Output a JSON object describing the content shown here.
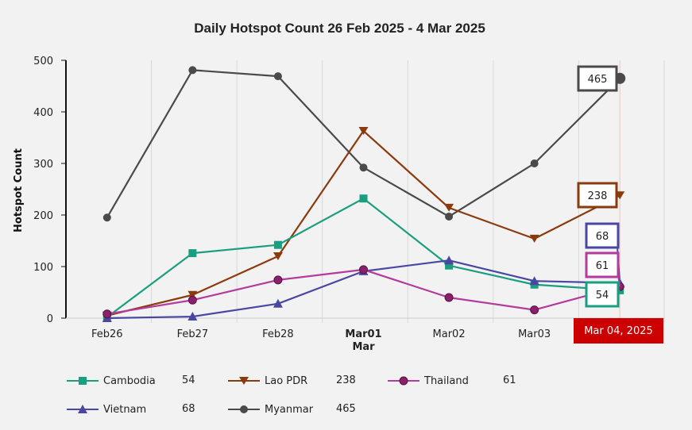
{
  "chart_data": {
    "type": "line",
    "title": "Daily Hotspot Count 26 Feb 2025 - 4 Mar 2025",
    "xlabel": "",
    "ylabel": "Hotspot Count",
    "ylim": [
      0,
      500
    ],
    "yticks": [
      0,
      100,
      200,
      300,
      400,
      500
    ],
    "grid": "vertical",
    "categories": [
      "Feb26",
      "Feb27",
      "Feb28",
      "Mar01",
      "Mar02",
      "Mar03",
      "Mar04"
    ],
    "category_sublabels": {
      "Mar01": "Mar"
    },
    "bold_categories": [
      "Mar01"
    ],
    "hover_label": "Mar 04, 2025",
    "legend_position": "bottom",
    "series": [
      {
        "name": "Cambodia",
        "color": "#1a9e80",
        "marker": "square",
        "values": [
          2,
          126,
          142,
          232,
          102,
          65,
          54
        ]
      },
      {
        "name": "Lao PDR",
        "color": "#8b3a0e",
        "marker": "triangle-down",
        "values": [
          5,
          45,
          120,
          363,
          214,
          154,
          238
        ]
      },
      {
        "name": "Thailand",
        "color": "#b33b9e",
        "marker": "circle-purple",
        "values": [
          8,
          35,
          74,
          94,
          40,
          16,
          61
        ]
      },
      {
        "name": "Vietnam",
        "color": "#4a47a3",
        "marker": "triangle-up",
        "values": [
          0,
          3,
          28,
          91,
          112,
          72,
          68
        ]
      },
      {
        "name": "Myanmar",
        "color": "#4a4a4a",
        "marker": "circle",
        "values": [
          195,
          481,
          469,
          292,
          197,
          300,
          465
        ]
      }
    ],
    "tooltip_values": [
      {
        "series": "Myanmar",
        "value": "465"
      },
      {
        "series": "Lao PDR",
        "value": "238"
      },
      {
        "series": "Vietnam",
        "value": "68"
      },
      {
        "series": "Thailand",
        "value": "61"
      },
      {
        "series": "Cambodia",
        "value": "54"
      }
    ]
  },
  "legend": [
    {
      "name": "Cambodia",
      "value": "54"
    },
    {
      "name": "Lao PDR",
      "value": "238"
    },
    {
      "name": "Thailand",
      "value": "61"
    },
    {
      "name": "Vietnam",
      "value": "68"
    },
    {
      "name": "Myanmar",
      "value": "465"
    }
  ]
}
